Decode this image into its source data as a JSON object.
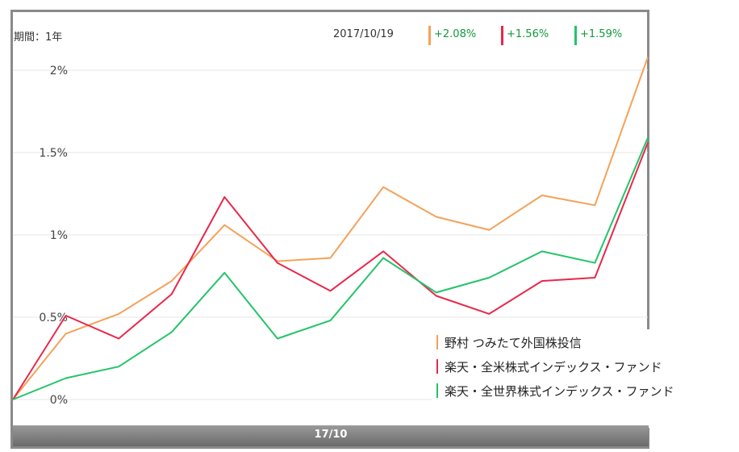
{
  "header": {
    "period_label": "期間：1年",
    "date": "2017/10/19",
    "changes": [
      {
        "value": "+2.08%",
        "color": "#f4a259"
      },
      {
        "value": "+1.56%",
        "color": "#e8284a"
      },
      {
        "value": "+1.59%",
        "color": "#23c468"
      }
    ]
  },
  "x_axis_bar_label": "17/10",
  "chart_data": {
    "type": "line",
    "ylim": [
      0,
      2.1
    ],
    "y_ticks": [
      {
        "value": 0,
        "label": "0%"
      },
      {
        "value": 0.5,
        "label": "0.5%"
      },
      {
        "value": 1,
        "label": "1%"
      },
      {
        "value": 1.5,
        "label": "1.5%"
      },
      {
        "value": 2,
        "label": "2%"
      }
    ],
    "grid": true,
    "legend_position": "bottom-right",
    "series": [
      {
        "name": "野村 つみたて外国株投信",
        "color": "#f4a259",
        "values": [
          0,
          0.4,
          0.52,
          0.72,
          1.06,
          0.84,
          0.86,
          1.29,
          1.11,
          1.03,
          1.24,
          1.18,
          2.08
        ]
      },
      {
        "name": "楽天・全米株式インデックス・ファンド",
        "color": "#e8284a",
        "values": [
          0,
          0.51,
          0.37,
          0.64,
          1.23,
          0.83,
          0.66,
          0.9,
          0.63,
          0.52,
          0.72,
          0.74,
          1.56
        ]
      },
      {
        "name": "楽天・全世界株式インデックス・ファンド",
        "color": "#23c468",
        "values": [
          0,
          0.13,
          0.2,
          0.41,
          0.77,
          0.37,
          0.48,
          0.86,
          0.65,
          0.74,
          0.9,
          0.83,
          1.59
        ]
      }
    ]
  },
  "legend": [
    {
      "label": "野村 つみたて外国株投信",
      "color": "#f4a259"
    },
    {
      "label": "楽天・全米株式インデックス・ファンド",
      "color": "#e8284a"
    },
    {
      "label": "楽天・全世界株式インデックス・ファンド",
      "color": "#23c468"
    }
  ]
}
